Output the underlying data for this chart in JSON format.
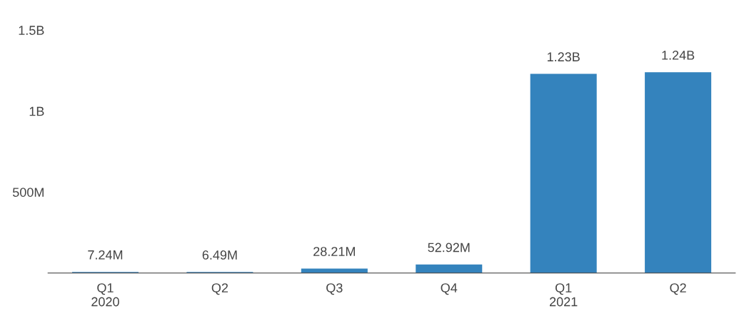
{
  "chart_data": {
    "type": "bar",
    "categories": [
      "Q1\n2020",
      "Q2",
      "Q3",
      "Q4",
      "Q1\n2021",
      "Q2"
    ],
    "values": [
      7240000,
      6490000,
      28210000,
      52920000,
      1230000000,
      1240000000
    ],
    "value_labels": [
      "7.24M",
      "6.49M",
      "28.21M",
      "52.92M",
      "1.23B",
      "1.24B"
    ],
    "color": "#3483bd",
    "ylim": [
      0,
      1500000000
    ],
    "yticks": [
      {
        "value": 500000000,
        "label": "500M"
      },
      {
        "value": 1000000000,
        "label": "1B"
      },
      {
        "value": 1500000000,
        "label": "1.5B"
      }
    ],
    "grid": false,
    "legend": false
  }
}
